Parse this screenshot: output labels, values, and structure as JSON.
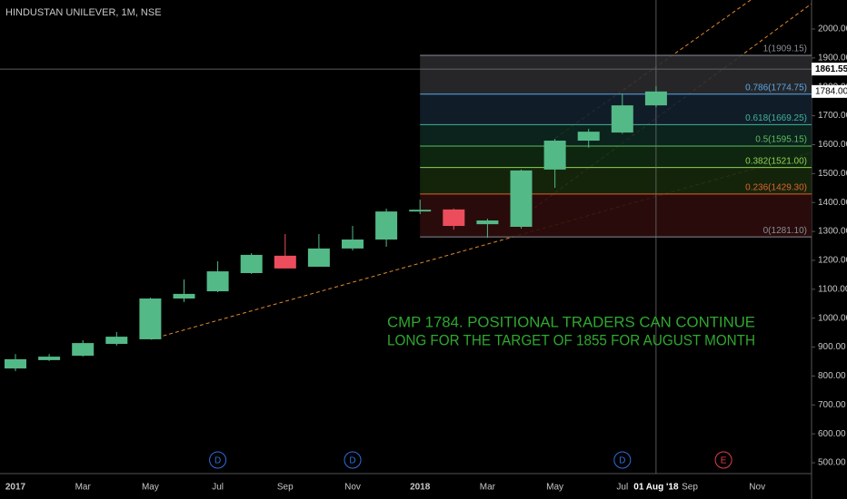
{
  "chart_data": {
    "type": "candlestick",
    "title": "HINDUSTAN UNILEVER, 1M, NSE",
    "categories": [
      "2017",
      null,
      "Mar",
      null,
      "May",
      null,
      "Jul",
      null,
      "Sep",
      null,
      "Nov",
      null,
      "2018",
      null,
      "Mar",
      null,
      "May",
      null,
      "Jul",
      null,
      "Sep",
      null,
      "Nov"
    ],
    "open": [
      826,
      855,
      870,
      911,
      927,
      1068,
      1093,
      1156,
      1216,
      1178,
      1241,
      1272,
      1369,
      1376,
      1325,
      1316,
      1514,
      1614,
      1642,
      1736,
      null,
      null,
      null
    ],
    "high": [
      876,
      876,
      924,
      952,
      1071,
      1134,
      1197,
      1225,
      1291,
      1291,
      1319,
      1379,
      1410,
      1379,
      1344,
      1514,
      1620,
      1655,
      1777,
      1802,
      null,
      null,
      null
    ],
    "low": [
      817,
      852,
      867,
      905,
      927,
      1056,
      1090,
      1153,
      1172,
      1178,
      1234,
      1247,
      1360,
      1306,
      1278,
      1310,
      1451,
      1590,
      1638,
      1730,
      null,
      null,
      null
    ],
    "close": [
      858,
      867,
      914,
      936,
      1068,
      1084,
      1162,
      1219,
      1172,
      1241,
      1272,
      1369,
      1375,
      1319,
      1338,
      1511,
      1614,
      1645,
      1736,
      1784,
      null,
      null,
      null
    ],
    "up_color": "#53b987",
    "down_color": "#eb4d5c",
    "ylim": [
      462.5,
      2100.4
    ],
    "yticks": [
      {
        "value": 500,
        "label": "500.00"
      },
      {
        "value": 600,
        "label": "600.00"
      },
      {
        "value": 700,
        "label": "700.00"
      },
      {
        "value": 800,
        "label": "800.00"
      },
      {
        "value": 900,
        "label": "900.00"
      },
      {
        "value": 1000,
        "label": "1000.00"
      },
      {
        "value": 1100,
        "label": "1100.00"
      },
      {
        "value": 1200,
        "label": "1200.00"
      },
      {
        "value": 1300,
        "label": "1300.00"
      },
      {
        "value": 1400,
        "label": "1400.00"
      },
      {
        "value": 1500,
        "label": "1500.00"
      },
      {
        "value": 1600,
        "label": "1600.00"
      },
      {
        "value": 1700,
        "label": "1700.00"
      },
      {
        "value": 1800,
        "label": "1800.00"
      },
      {
        "value": 1900,
        "label": "1900.00"
      },
      {
        "value": 2000,
        "label": "2000.00"
      }
    ],
    "fib_levels": [
      {
        "value": 1909.15,
        "label": "1(1909.15)",
        "color": "#8a8d96",
        "fill": "#2a2a2e"
      },
      {
        "value": 1774.75,
        "label": "0.786(1774.75)",
        "color": "#5aa6e8",
        "fill": "#12202e"
      },
      {
        "value": 1669.25,
        "label": "0.618(1669.25)",
        "color": "#3fb39a",
        "fill": "#0d2620"
      },
      {
        "value": 1595.15,
        "label": "0.5(1595.15)",
        "color": "#5cbf5c",
        "fill": "#102a12"
      },
      {
        "value": 1521.0,
        "label": "0.382(1521.00)",
        "color": "#8fd14f",
        "fill": "#16280c"
      },
      {
        "value": 1429.3,
        "label": "0.236(1429.30)",
        "color": "#e0622b",
        "fill": "#2e0c0c"
      },
      {
        "value": 1281.1,
        "label": "0(1281.10)",
        "color": "#8a8d96",
        "fill": null
      }
    ],
    "crosshair": {
      "x_label": "01 Aug '18",
      "y": {
        "value": 1861.55,
        "label": "1861.55"
      }
    },
    "last_price": {
      "value": 1784,
      "label": "1784.00"
    },
    "events": [
      null,
      null,
      null,
      null,
      null,
      null,
      {
        "label": "D",
        "color": "#2f6fdc"
      },
      null,
      null,
      null,
      {
        "label": "D",
        "color": "#2f6fdc"
      },
      null,
      null,
      null,
      null,
      null,
      null,
      null,
      {
        "label": "D",
        "color": "#2f6fdc"
      },
      null,
      null,
      {
        "label": "E",
        "color": "#e0404a"
      },
      null
    ],
    "annotation": [
      "CMP 1784. POSITIONAL TRADERS CAN CONTINUE",
      "LONG FOR THE TARGET OF 1855 FOR AUGUST MONTH"
    ],
    "annotation_color": "#2fa82f"
  }
}
